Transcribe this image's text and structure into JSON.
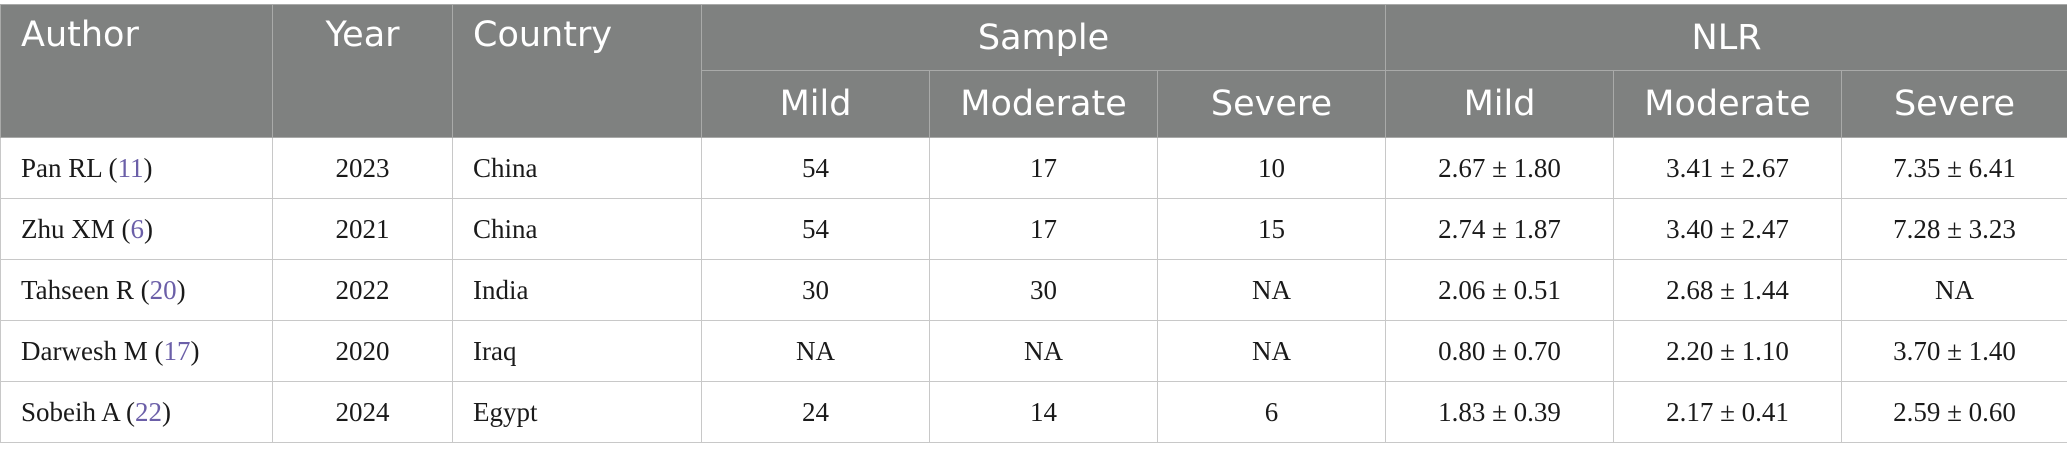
{
  "header": {
    "author": "Author",
    "year": "Year",
    "country": "Country",
    "sample": "Sample",
    "nlr": "NLR",
    "sub": [
      "Mild",
      "Moderate",
      "Severe",
      "Mild",
      "Moderate",
      "Severe"
    ]
  },
  "rows": [
    {
      "author": "Pan RL",
      "ref": "11",
      "year": "2023",
      "country": "China",
      "s_mild": "54",
      "s_moderate": "17",
      "s_severe": "10",
      "n_mild": "2.67 ± 1.80",
      "n_moderate": "3.41 ± 2.67",
      "n_severe": "7.35 ± 6.41"
    },
    {
      "author": "Zhu XM",
      "ref": "6",
      "year": "2021",
      "country": "China",
      "s_mild": "54",
      "s_moderate": "17",
      "s_severe": "15",
      "n_mild": "2.74 ± 1.87",
      "n_moderate": "3.40 ± 2.47",
      "n_severe": "7.28 ± 3.23"
    },
    {
      "author": "Tahseen R",
      "ref": "20",
      "year": "2022",
      "country": "India",
      "s_mild": "30",
      "s_moderate": "30",
      "s_severe": "NA",
      "n_mild": "2.06 ± 0.51",
      "n_moderate": "2.68 ± 1.44",
      "n_severe": "NA"
    },
    {
      "author": "Darwesh M",
      "ref": "17",
      "year": "2020",
      "country": "Iraq",
      "s_mild": "NA",
      "s_moderate": "NA",
      "s_severe": "NA",
      "n_mild": "0.80 ± 0.70",
      "n_moderate": "2.20 ± 1.10",
      "n_severe": "3.70 ± 1.40"
    },
    {
      "author": "Sobeih A",
      "ref": "22",
      "year": "2024",
      "country": "Egypt",
      "s_mild": "24",
      "s_moderate": "14",
      "s_severe": "6",
      "n_mild": "1.83 ± 0.39",
      "n_moderate": "2.17 ± 0.41",
      "n_severe": "2.59 ± 0.60"
    }
  ]
}
